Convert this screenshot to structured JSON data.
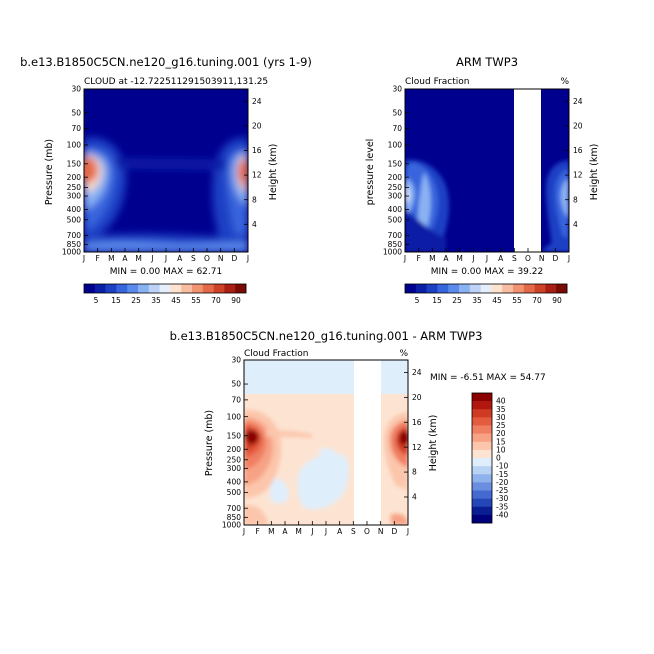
{
  "chart_data": [
    {
      "type": "heatmap",
      "title": "b.e13.B1850C5CN.ne120_g16.tuning.001 (yrs 1-9)",
      "subtitle": "CLOUD at -12.722511291503911,131.25",
      "units": "",
      "ylabel": "Pressure (mb)",
      "y2label": "Height (km)",
      "months": [
        "J",
        "F",
        "M",
        "A",
        "M",
        "J",
        "J",
        "A",
        "S",
        "O",
        "N",
        "D",
        "J"
      ],
      "pressure_ticks": [
        "30",
        "50",
        "70",
        "100",
        "150",
        "200",
        "250",
        "300",
        "400",
        "500",
        "700",
        "850",
        "1000"
      ],
      "height_ticks": [
        "24",
        "20",
        "16",
        "12",
        "8",
        "4"
      ],
      "min_text": "MIN =  0.00 MAX =  62.71",
      "colorbar": {
        "labels": [
          "5",
          "15",
          "25",
          "35",
          "45",
          "55",
          "70",
          "90"
        ],
        "colors": [
          "#00008f",
          "#0a1fa6",
          "#1c3fc4",
          "#3765dd",
          "#5a8aec",
          "#8ab2f3",
          "#bcd3f7",
          "#e6eefb",
          "#fde2cf",
          "#f8bda0",
          "#f19371",
          "#e36a48",
          "#cc4128",
          "#a91f14",
          "#7a0a05"
        ]
      }
    },
    {
      "type": "heatmap",
      "title": "ARM TWP3",
      "subtitle": "Cloud Fraction",
      "units": "%",
      "ylabel": "pressure level",
      "y2label": "Height (km)",
      "months": [
        "J",
        "F",
        "M",
        "A",
        "M",
        "J",
        "J",
        "A",
        "S",
        "O",
        "N",
        "D",
        "J"
      ],
      "pressure_ticks": [
        "30",
        "50",
        "70",
        "100",
        "150",
        "200",
        "250",
        "300",
        "400",
        "500",
        "700",
        "850",
        "1000"
      ],
      "height_ticks": [
        "24",
        "20",
        "16",
        "12",
        "8",
        "4"
      ],
      "min_text": "MIN =  0.00 MAX =  39.22",
      "colorbar": {
        "labels": [
          "5",
          "15",
          "25",
          "35",
          "45",
          "55",
          "70",
          "90"
        ],
        "colors": [
          "#00008f",
          "#0a1fa6",
          "#1c3fc4",
          "#3765dd",
          "#5a8aec",
          "#8ab2f3",
          "#bcd3f7",
          "#e6eefb",
          "#fde2cf",
          "#f8bda0",
          "#f19371",
          "#e36a48",
          "#cc4128",
          "#a91f14",
          "#7a0a05"
        ]
      }
    },
    {
      "type": "heatmap",
      "title": "b.e13.B1850C5CN.ne120_g16.tuning.001 - ARM TWP3",
      "subtitle": "Cloud Fraction",
      "units": "%",
      "ylabel": "Pressure (mb)",
      "y2label": "Height (km)",
      "months": [
        "J",
        "F",
        "M",
        "A",
        "M",
        "J",
        "J",
        "A",
        "S",
        "O",
        "N",
        "D",
        "J"
      ],
      "pressure_ticks": [
        "30",
        "50",
        "70",
        "100",
        "150",
        "200",
        "250",
        "300",
        "400",
        "500",
        "700",
        "850",
        "1000"
      ],
      "height_ticks": [
        "24",
        "20",
        "16",
        "12",
        "8",
        "4"
      ],
      "min_text": "MIN = -6.51 MAX = 54.77",
      "colorbar": {
        "labels": [
          "40",
          "35",
          "30",
          "25",
          "20",
          "15",
          "10",
          "0",
          "-10",
          "-15",
          "-20",
          "-25",
          "-30",
          "-35",
          "-40"
        ],
        "colors": [
          "#8b0000",
          "#b2170f",
          "#cf3a22",
          "#e45c3f",
          "#f07f62",
          "#f7a285",
          "#fbc6ac",
          "#fde4d2",
          "#dfeefb",
          "#b8d3f4",
          "#8fb1ec",
          "#6a8fe0",
          "#4469d0",
          "#2446b8",
          "#0a1e94",
          "#00007a"
        ]
      }
    }
  ]
}
